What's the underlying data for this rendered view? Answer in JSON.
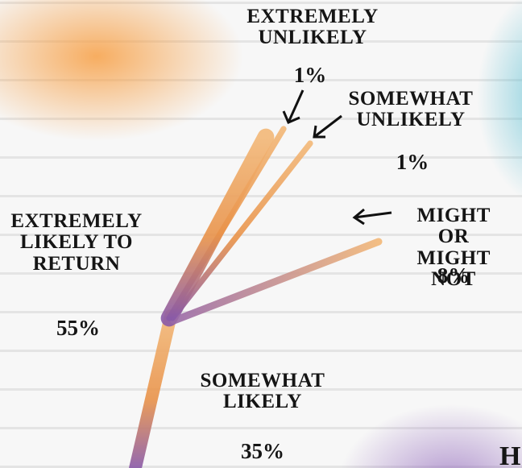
{
  "chart_data": {
    "type": "branch",
    "categories": [
      "EXTREMELY\nUNLIKELY",
      "SOMEWHAT\nUNLIKELY",
      "MIGHT OR\nMIGHT NOT",
      "EXTREMELY\nLIKELY TO\nRETURN",
      "SOMEWHAT\nLIKELY"
    ],
    "values": [
      1,
      1,
      8,
      55,
      35
    ],
    "value_labels": [
      "1%",
      "1%",
      "8%",
      "55%",
      "35%"
    ],
    "footer_fragment": "HO"
  }
}
